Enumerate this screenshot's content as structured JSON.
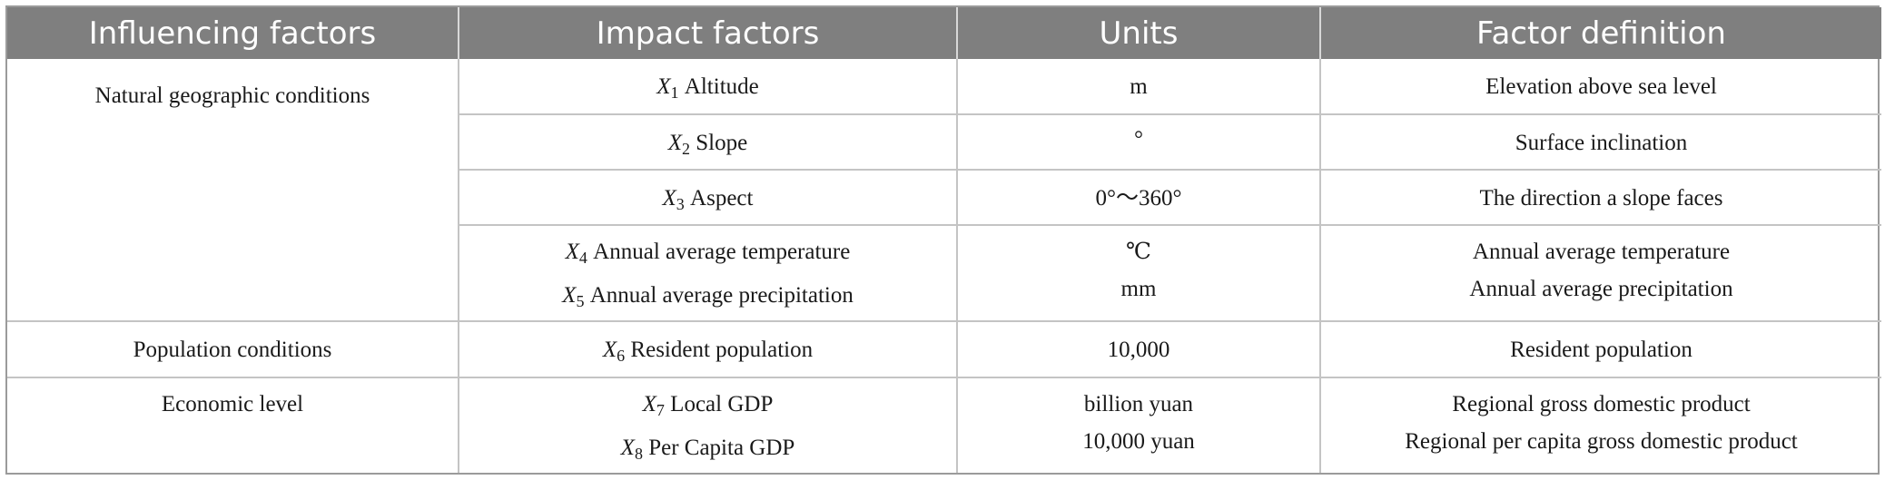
{
  "headers": [
    "Influencing factors",
    "Impact factors",
    "Units",
    "Factor definition"
  ],
  "groups": {
    "natural": "Natural geographic conditions",
    "population": "Population conditions",
    "economic": "Economic level"
  },
  "rows": {
    "x1": {
      "var": "X",
      "sub": "1",
      "name": "Altitude",
      "unit": "m",
      "definition": "Elevation above sea level"
    },
    "x2": {
      "var": "X",
      "sub": "2",
      "name": "Slope",
      "unit": "°",
      "definition": "Surface inclination"
    },
    "x3": {
      "var": "X",
      "sub": "3",
      "name": "Aspect",
      "unit": "0°～360°",
      "definition": "The direction a slope faces"
    },
    "x4": {
      "var": "X",
      "sub": "4",
      "name": "Annual average temperature",
      "unit": "℃",
      "definition": "Annual average temperature"
    },
    "x5": {
      "var": "X",
      "sub": "5",
      "name": "Annual average precipitation",
      "unit": "mm",
      "definition": "Annual average precipitation"
    },
    "x6": {
      "var": "X",
      "sub": "6",
      "name": "Resident population",
      "unit": "10,000",
      "definition": "Resident population"
    },
    "x7": {
      "var": "X",
      "sub": "7",
      "name": "Local GDP",
      "unit": "billion yuan",
      "definition": "Regional gross domestic product"
    },
    "x8": {
      "var": "X",
      "sub": "8",
      "name": "Per Capita GDP",
      "unit": "10,000 yuan",
      "definition": "Regional per capita gross domestic product"
    }
  }
}
